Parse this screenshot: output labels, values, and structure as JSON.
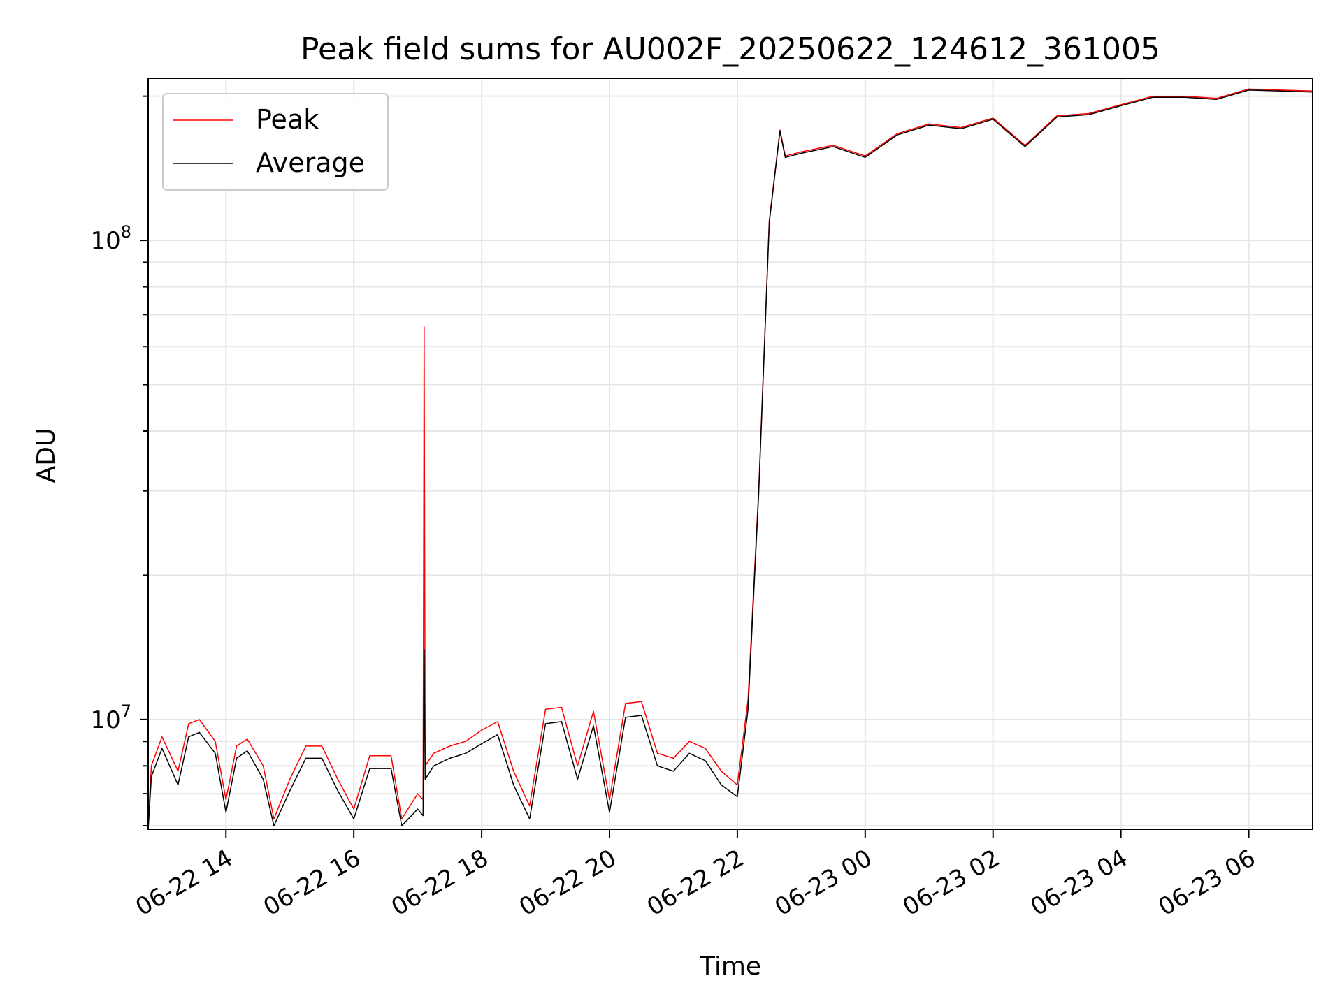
{
  "chart_data": {
    "type": "line",
    "title": "Peak field sums for AU002F_20250622_124612_361005",
    "xlabel": "Time",
    "ylabel": "ADU",
    "yscale": "log",
    "grid": true,
    "legend": {
      "placement": "top-left",
      "entries": [
        "Peak",
        "Average"
      ]
    },
    "xlim": [
      "2025-06-22 12:47",
      "2025-06-23 07:00"
    ],
    "ylim": [
      5900000,
      218000000
    ],
    "x_tick_labels": [
      "06-22 14",
      "06-22 16",
      "06-22 18",
      "06-22 20",
      "06-22 22",
      "06-23 00",
      "06-23 02",
      "06-23 04",
      "06-23 06"
    ],
    "x_ticks": [
      "2025-06-22 14:00",
      "2025-06-22 16:00",
      "2025-06-22 18:00",
      "2025-06-22 20:00",
      "2025-06-22 22:00",
      "2025-06-23 00:00",
      "2025-06-23 02:00",
      "2025-06-23 04:00",
      "2025-06-23 06:00"
    ],
    "y_tick_labels": [
      {
        "base": "10",
        "exp": "7",
        "value": 10000000
      },
      {
        "base": "10",
        "exp": "8",
        "value": 100000000
      }
    ],
    "series": [
      {
        "name": "Peak",
        "color": "#ff0000",
        "x": [
          "2025-06-22 12:47",
          "2025-06-22 12:50",
          "2025-06-22 13:00",
          "2025-06-22 13:15",
          "2025-06-22 13:25",
          "2025-06-22 13:35",
          "2025-06-22 13:50",
          "2025-06-22 14:00",
          "2025-06-22 14:10",
          "2025-06-22 14:20",
          "2025-06-22 14:35",
          "2025-06-22 14:45",
          "2025-06-22 15:00",
          "2025-06-22 15:15",
          "2025-06-22 15:30",
          "2025-06-22 15:45",
          "2025-06-22 16:00",
          "2025-06-22 16:15",
          "2025-06-22 16:35",
          "2025-06-22 16:45",
          "2025-06-22 17:00",
          "2025-06-22 17:05",
          "2025-06-22 17:06",
          "2025-06-22 17:07",
          "2025-06-22 17:15",
          "2025-06-22 17:30",
          "2025-06-22 17:45",
          "2025-06-22 18:00",
          "2025-06-22 18:15",
          "2025-06-22 18:30",
          "2025-06-22 18:45",
          "2025-06-22 19:00",
          "2025-06-22 19:15",
          "2025-06-22 19:30",
          "2025-06-22 19:45",
          "2025-06-22 20:00",
          "2025-06-22 20:15",
          "2025-06-22 20:30",
          "2025-06-22 20:45",
          "2025-06-22 21:00",
          "2025-06-22 21:15",
          "2025-06-22 21:30",
          "2025-06-22 21:45",
          "2025-06-22 22:00",
          "2025-06-22 22:10",
          "2025-06-22 22:20",
          "2025-06-22 22:30",
          "2025-06-22 22:40",
          "2025-06-22 22:45",
          "2025-06-22 23:00",
          "2025-06-22 23:30",
          "2025-06-23 00:00",
          "2025-06-23 00:30",
          "2025-06-23 01:00",
          "2025-06-23 01:30",
          "2025-06-23 02:00",
          "2025-06-23 02:30",
          "2025-06-23 03:00",
          "2025-06-23 03:30",
          "2025-06-23 04:00",
          "2025-06-23 04:30",
          "2025-06-23 05:00",
          "2025-06-23 05:30",
          "2025-06-23 06:00",
          "2025-06-23 06:30",
          "2025-06-23 07:00"
        ],
        "y": [
          6100000,
          8000000,
          9200000,
          7800000,
          9800000,
          10000000,
          9000000,
          6800000,
          8800000,
          9100000,
          8000000,
          6200000,
          7500000,
          8800000,
          8800000,
          7500000,
          6500000,
          8400000,
          8400000,
          6200000,
          7000000,
          6800000,
          66000000,
          8000000,
          8500000,
          8800000,
          9000000,
          9500000,
          9900000,
          7800000,
          6600000,
          10500000,
          10600000,
          8000000,
          10400000,
          6800000,
          10800000,
          10900000,
          8500000,
          8300000,
          9000000,
          8700000,
          7800000,
          7300000,
          11000000,
          30000000,
          110000000,
          170000000,
          150000000,
          153000000,
          158000000,
          150000000,
          167000000,
          175000000,
          172000000,
          180000000,
          158000000,
          182000000,
          184000000,
          192000000,
          200000000,
          200000000,
          198000000,
          207000000,
          206000000,
          205000000
        ]
      },
      {
        "name": "Average",
        "color": "#000000",
        "x": [
          "2025-06-22 12:47",
          "2025-06-22 12:50",
          "2025-06-22 13:00",
          "2025-06-22 13:15",
          "2025-06-22 13:25",
          "2025-06-22 13:35",
          "2025-06-22 13:50",
          "2025-06-22 14:00",
          "2025-06-22 14:10",
          "2025-06-22 14:20",
          "2025-06-22 14:35",
          "2025-06-22 14:45",
          "2025-06-22 15:00",
          "2025-06-22 15:15",
          "2025-06-22 15:30",
          "2025-06-22 15:45",
          "2025-06-22 16:00",
          "2025-06-22 16:15",
          "2025-06-22 16:35",
          "2025-06-22 16:45",
          "2025-06-22 17:00",
          "2025-06-22 17:05",
          "2025-06-22 17:06",
          "2025-06-22 17:07",
          "2025-06-22 17:15",
          "2025-06-22 17:30",
          "2025-06-22 17:45",
          "2025-06-22 18:00",
          "2025-06-22 18:15",
          "2025-06-22 18:30",
          "2025-06-22 18:45",
          "2025-06-22 19:00",
          "2025-06-22 19:15",
          "2025-06-22 19:30",
          "2025-06-22 19:45",
          "2025-06-22 20:00",
          "2025-06-22 20:15",
          "2025-06-22 20:30",
          "2025-06-22 20:45",
          "2025-06-22 21:00",
          "2025-06-22 21:15",
          "2025-06-22 21:30",
          "2025-06-22 21:45",
          "2025-06-22 22:00",
          "2025-06-22 22:10",
          "2025-06-22 22:20",
          "2025-06-22 22:30",
          "2025-06-22 22:40",
          "2025-06-22 22:45",
          "2025-06-22 23:00",
          "2025-06-22 23:30",
          "2025-06-23 00:00",
          "2025-06-23 00:30",
          "2025-06-23 01:00",
          "2025-06-23 01:30",
          "2025-06-23 02:00",
          "2025-06-23 02:30",
          "2025-06-23 03:00",
          "2025-06-23 03:30",
          "2025-06-23 04:00",
          "2025-06-23 04:30",
          "2025-06-23 05:00",
          "2025-06-23 05:30",
          "2025-06-23 06:00",
          "2025-06-23 06:30",
          "2025-06-23 07:00"
        ],
        "y": [
          5900000,
          7600000,
          8700000,
          7300000,
          9200000,
          9400000,
          8500000,
          6400000,
          8300000,
          8600000,
          7500000,
          6000000,
          7100000,
          8300000,
          8300000,
          7100000,
          6200000,
          7900000,
          7900000,
          6000000,
          6500000,
          6300000,
          14000000,
          7500000,
          8000000,
          8300000,
          8500000,
          8900000,
          9300000,
          7300000,
          6200000,
          9800000,
          9900000,
          7500000,
          9700000,
          6400000,
          10100000,
          10200000,
          8000000,
          7800000,
          8500000,
          8200000,
          7300000,
          6900000,
          10500000,
          29500000,
          109000000,
          169000000,
          149000000,
          152000000,
          157000000,
          149000000,
          166000000,
          174000000,
          171000000,
          179000000,
          157000000,
          181000000,
          183000000,
          191000000,
          199000000,
          199000000,
          197000000,
          206000000,
          205000000,
          204000000
        ]
      }
    ]
  }
}
